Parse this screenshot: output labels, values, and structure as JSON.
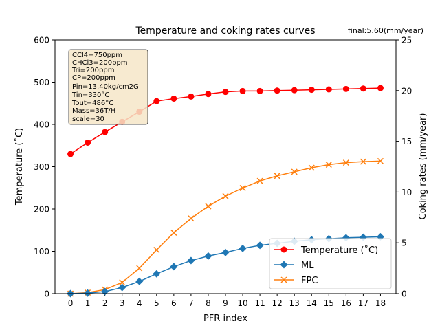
{
  "chart_data": {
    "type": "line",
    "title": "Temperature and coking rates curves",
    "annotation": "final:5.60(mm/year)",
    "xlabel": "PFR index",
    "ylabel_left": "Temperature ($^\\circ$C)",
    "ylabel_left_display": "Temperature (˚C)",
    "ylabel_right": "Coking rates (mm/year)",
    "x": [
      0,
      1,
      2,
      3,
      4,
      5,
      6,
      7,
      8,
      9,
      10,
      11,
      12,
      13,
      14,
      15,
      16,
      17,
      18
    ],
    "xlim": [
      -0.9,
      18.9
    ],
    "ylim_left": [
      0,
      600
    ],
    "ylim_right": [
      0,
      25
    ],
    "yticks_left": [
      0,
      100,
      200,
      300,
      400,
      500,
      600
    ],
    "yticks_right": [
      0,
      5,
      10,
      15,
      20,
      25
    ],
    "grid": false,
    "legend_placement": "lower-right",
    "series": [
      {
        "name": "Temperature ($^\\circ$C)",
        "display_name": "Temperature (˚C)",
        "axis": "left",
        "color": "#ff0000",
        "marker": "circle",
        "values": [
          330,
          357,
          382,
          406,
          430,
          455,
          461,
          466,
          472,
          477,
          479,
          479,
          480,
          481,
          482,
          483,
          484,
          485,
          486
        ]
      },
      {
        "name": "ML",
        "axis": "right",
        "color": "#1f77b4",
        "marker": "diamond",
        "values": [
          0.0,
          0.05,
          0.2,
          0.6,
          1.2,
          1.95,
          2.65,
          3.25,
          3.7,
          4.05,
          4.45,
          4.75,
          4.95,
          5.15,
          5.3,
          5.4,
          5.5,
          5.55,
          5.6
        ]
      },
      {
        "name": "FPC",
        "axis": "right",
        "color": "#ff7f0e",
        "marker": "x",
        "values": [
          0.0,
          0.1,
          0.4,
          1.1,
          2.5,
          4.3,
          6.0,
          7.4,
          8.6,
          9.6,
          10.4,
          11.1,
          11.6,
          12.0,
          12.4,
          12.7,
          12.9,
          13.0,
          13.05
        ]
      }
    ],
    "info_box": [
      "CCl4=750ppm",
      "CHCl3=200ppm",
      "Tri=200ppm",
      "CP=200ppm",
      "Pin=13.40kg/cm2G",
      "Tin=330°C",
      "Tout=486°C",
      "Mass=36T/H",
      "scale=30"
    ]
  }
}
